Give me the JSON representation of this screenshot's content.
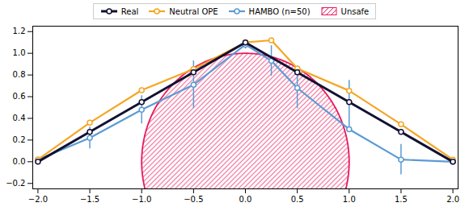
{
  "chart_data": {
    "type": "line",
    "legend": "top",
    "xlim": [
      -2.05,
      2.05
    ],
    "ylim": [
      -0.25,
      1.25
    ],
    "xticks": [
      {
        "value": -2.0,
        "label": "−2.0"
      },
      {
        "value": -1.5,
        "label": "−1.5"
      },
      {
        "value": -1.0,
        "label": "−1.0"
      },
      {
        "value": -0.5,
        "label": "−0.5"
      },
      {
        "value": 0.0,
        "label": "0.0"
      },
      0.5,
      {
        "value": 1.0,
        "label": "1.0"
      },
      1.5,
      {
        "value": 2.0,
        "label": "2.0"
      }
    ],
    "yticks": [
      {
        "value": -0.2,
        "label": "−0.2"
      },
      {
        "value": 0.0,
        "label": "0.0"
      },
      0.2,
      0.4,
      0.6,
      0.8,
      {
        "value": 1.0,
        "label": "1.0"
      },
      1.2
    ],
    "series": [
      {
        "name": "Real",
        "color": "#111133",
        "marker": "circle",
        "x": [
          -2.0,
          -1.5,
          -1.0,
          -0.5,
          0.0,
          0.5,
          1.0,
          1.5,
          2.0
        ],
        "values": [
          0.0,
          0.275,
          0.55,
          0.825,
          1.1,
          0.825,
          0.55,
          0.275,
          0.0
        ]
      },
      {
        "name": "Neutral OPE",
        "color": "#f5a623",
        "marker": "circle",
        "x": [
          -2.0,
          -1.5,
          -1.0,
          -0.5,
          0.0,
          0.25,
          0.5,
          1.0,
          1.5,
          2.0
        ],
        "values": [
          0.02,
          0.36,
          0.66,
          0.855,
          1.1,
          1.12,
          0.86,
          0.655,
          0.345,
          0.02
        ]
      },
      {
        "name": "HAMBO (n=50)",
        "color": "#5b9bd5",
        "marker": "circle",
        "x": [
          -2.0,
          -1.5,
          -1.0,
          -0.5,
          0.0,
          0.25,
          0.5,
          1.0,
          1.5,
          2.0
        ],
        "values": [
          0.02,
          0.22,
          0.48,
          0.71,
          1.08,
          0.93,
          0.68,
          0.3,
          0.02,
          0.0
        ],
        "error_low": [
          0.02,
          0.1,
          0.13,
          0.22,
          0.04,
          0.14,
          0.19,
          0.03,
          0.14,
          0.03
        ],
        "error_high": [
          0.02,
          0.1,
          0.13,
          0.22,
          0.04,
          0.14,
          0.19,
          0.45,
          0.14,
          0.03
        ]
      },
      {
        "name": "Unsafe",
        "type": "circle",
        "color": "#e8175d",
        "center_x": 0.0,
        "center_y": 0.0,
        "radius": 1.0
      }
    ]
  }
}
